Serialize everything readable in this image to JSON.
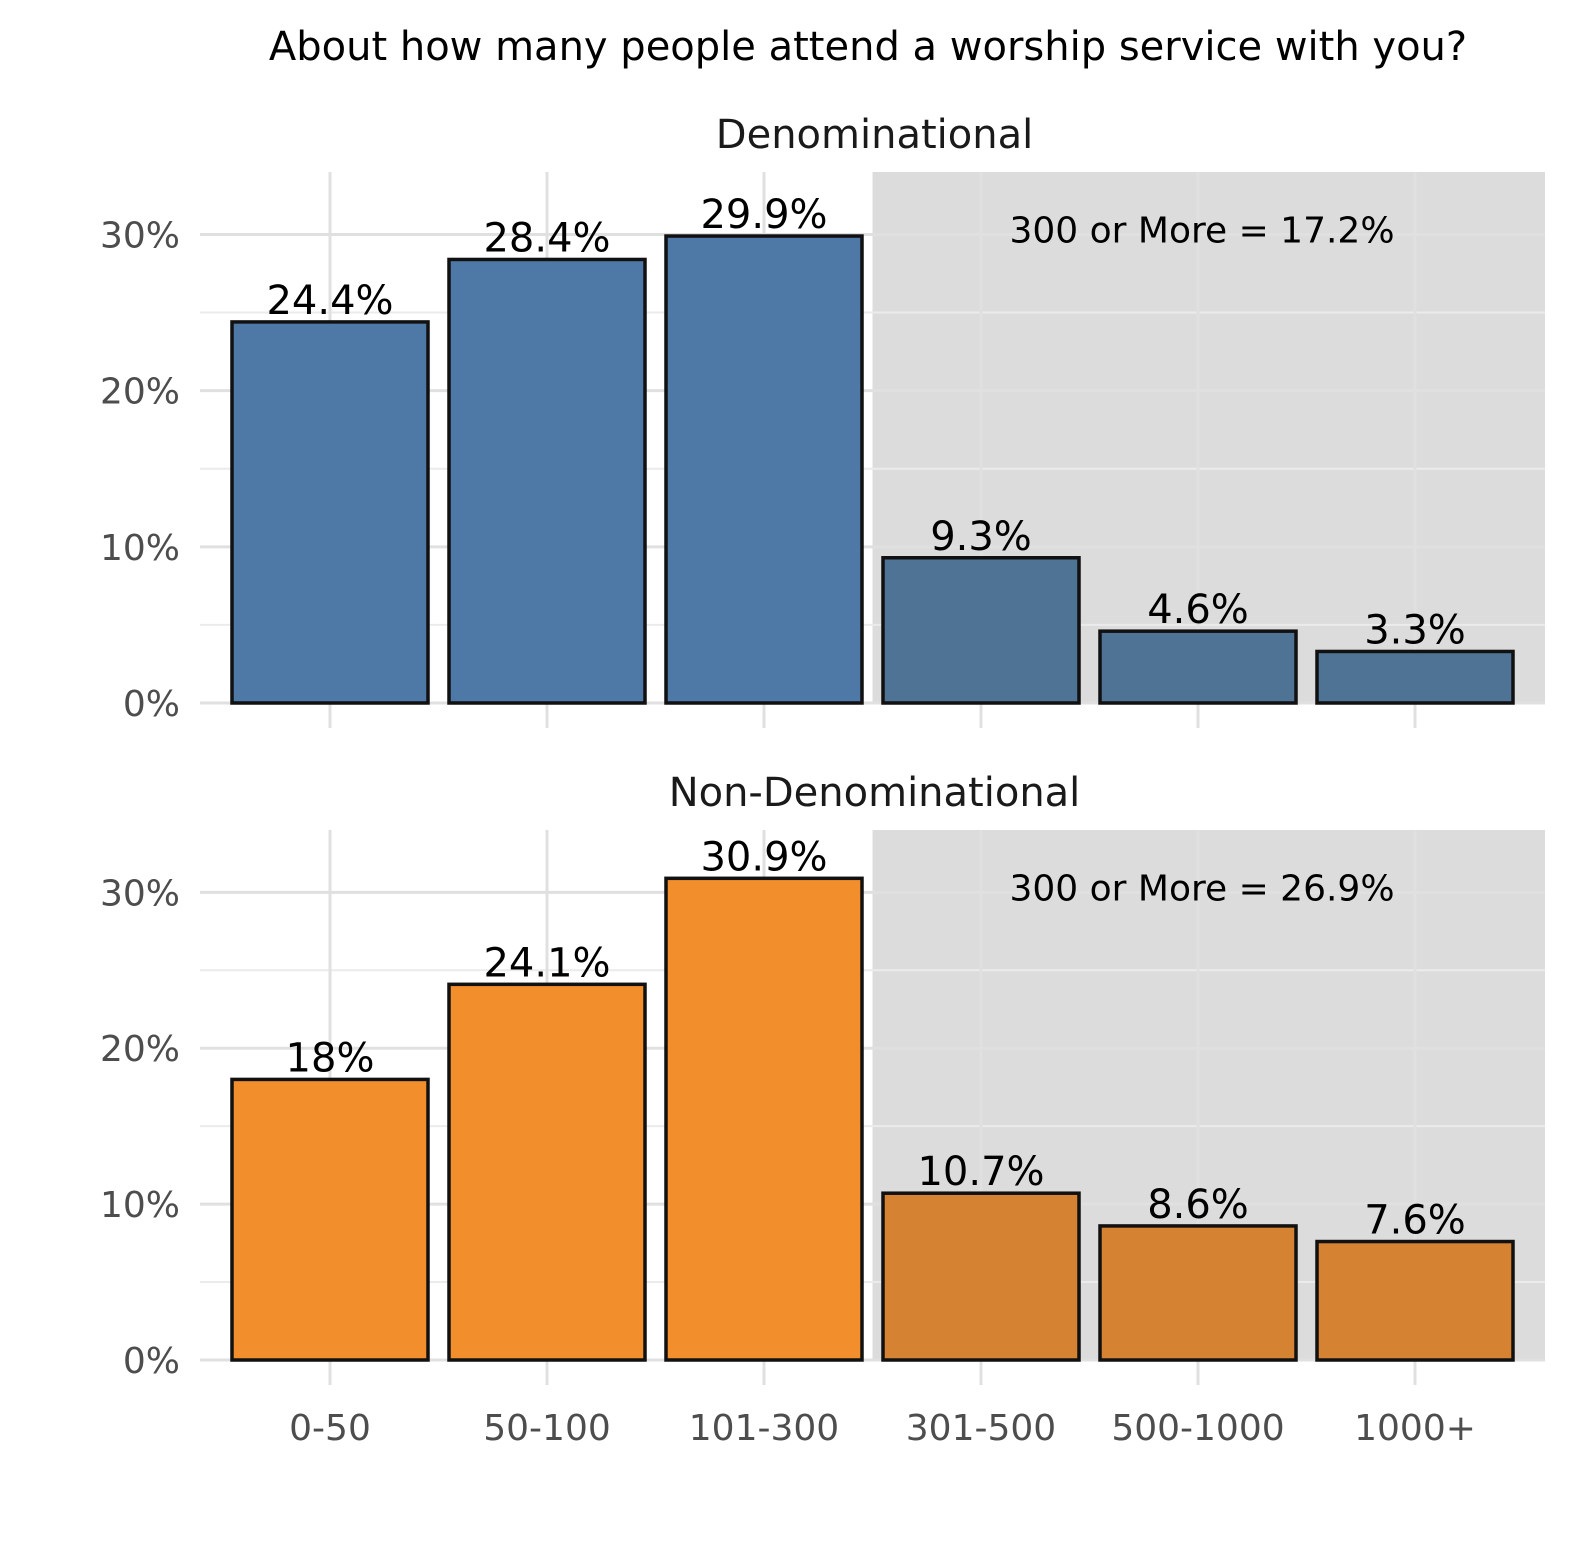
{
  "chart_data": {
    "type": "bar",
    "title": "About how many people attend a worship service with you?",
    "xlabel": "",
    "ylabel": "",
    "categories": [
      "0-50",
      "50-100",
      "101-300",
      "301-500",
      "500-1000",
      "1000+"
    ],
    "y_ticks": [
      "0%",
      "10%",
      "20%",
      "30%"
    ],
    "ylim": [
      0,
      34
    ],
    "grid": true,
    "highlight_region": {
      "from_category": "301-500",
      "to_category": "1000+",
      "color": "#dcdcdc"
    },
    "series": [
      {
        "name": "Denominational",
        "values": [
          24.4,
          28.4,
          29.9,
          9.3,
          4.6,
          3.3
        ],
        "data_labels": [
          "24.4%",
          "28.4%",
          "29.9%",
          "9.3%",
          "4.6%",
          "3.3%"
        ],
        "color": "#4e79a7",
        "highlight_color": "#4f7395",
        "annotation": "300 or More = 17.2%"
      },
      {
        "name": "Non-Denominational",
        "values": [
          18,
          24.1,
          30.9,
          10.7,
          8.6,
          7.6
        ],
        "data_labels": [
          "18%",
          "24.1%",
          "30.9%",
          "10.7%",
          "8.6%",
          "7.6%"
        ],
        "color": "#f28e2b",
        "highlight_color": "#d58333",
        "annotation": "300 or More = 26.9%"
      }
    ]
  }
}
